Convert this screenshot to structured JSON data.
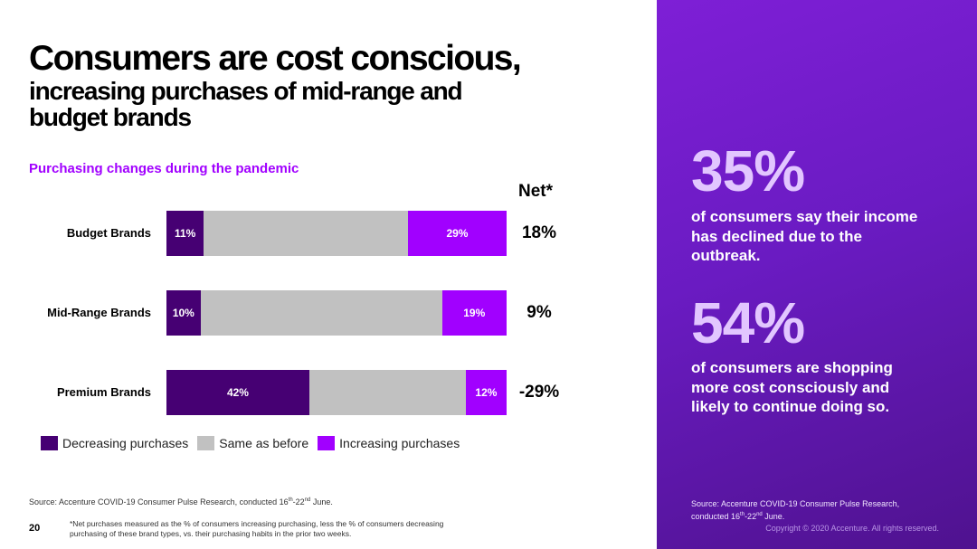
{
  "title": {
    "line1": "Consumers are cost conscious,",
    "line2": "increasing purchases of mid-range and budget brands"
  },
  "chart_data": {
    "type": "bar",
    "stacked": true,
    "orientation": "horizontal",
    "title": "Purchasing changes during the pandemic",
    "net_header": "Net*",
    "categories": [
      "Budget Brands",
      "Mid-Range Brands",
      "Premium Brands"
    ],
    "series": [
      {
        "name": "Decreasing purchases",
        "values": [
          11,
          10,
          42
        ],
        "color": "#460073"
      },
      {
        "name": "Same as before",
        "values": [
          60,
          71,
          46
        ],
        "color": "#c1c1c1"
      },
      {
        "name": "Increasing purchases",
        "values": [
          29,
          19,
          12
        ],
        "color": "#a100ff"
      }
    ],
    "data_labels": {
      "decreasing": [
        "11%",
        "10%",
        "42%"
      ],
      "increasing": [
        "29%",
        "19%",
        "12%"
      ]
    },
    "net": [
      "18%",
      "9%",
      "-29%"
    ],
    "legend_position": "bottom-left"
  },
  "legend": {
    "decreasing": "Decreasing purchases",
    "same": "Same as before",
    "increasing": "Increasing purchases"
  },
  "footer": {
    "source_prefix": "Source: Accenture COVID-19 Consumer Pulse Research, conducted 16",
    "source_sup1": "th",
    "source_mid": "-22",
    "source_sup2": "nd",
    "source_suffix": " June.",
    "page_number": "20",
    "footnote": "*Net purchases measured as the % of consumers increasing purchasing, less the % of consumers decreasing purchasing of these brand types, vs. their purchasing habits in the prior two weeks."
  },
  "panel": {
    "stat1_value": "35%",
    "stat1_text": "of consumers say their income has declined due to the outbreak.",
    "stat2_value": "54%",
    "stat2_text": "of consumers are shopping more cost consciously and likely to continue doing so.",
    "source_line1": "Source: Accenture COVID-19 Consumer Pulse Research,",
    "source_line2_prefix": "conducted 16",
    "source_sup1": "th",
    "source_mid": "-22",
    "source_sup2": "nd",
    "source_suffix": " June.",
    "copyright": "Copyright © 2020 Accenture. All rights reserved."
  },
  "colors": {
    "accent": "#a100ff",
    "dark_purple": "#460073",
    "gray": "#c1c1c1",
    "stat_number": "#e2c6ff"
  }
}
